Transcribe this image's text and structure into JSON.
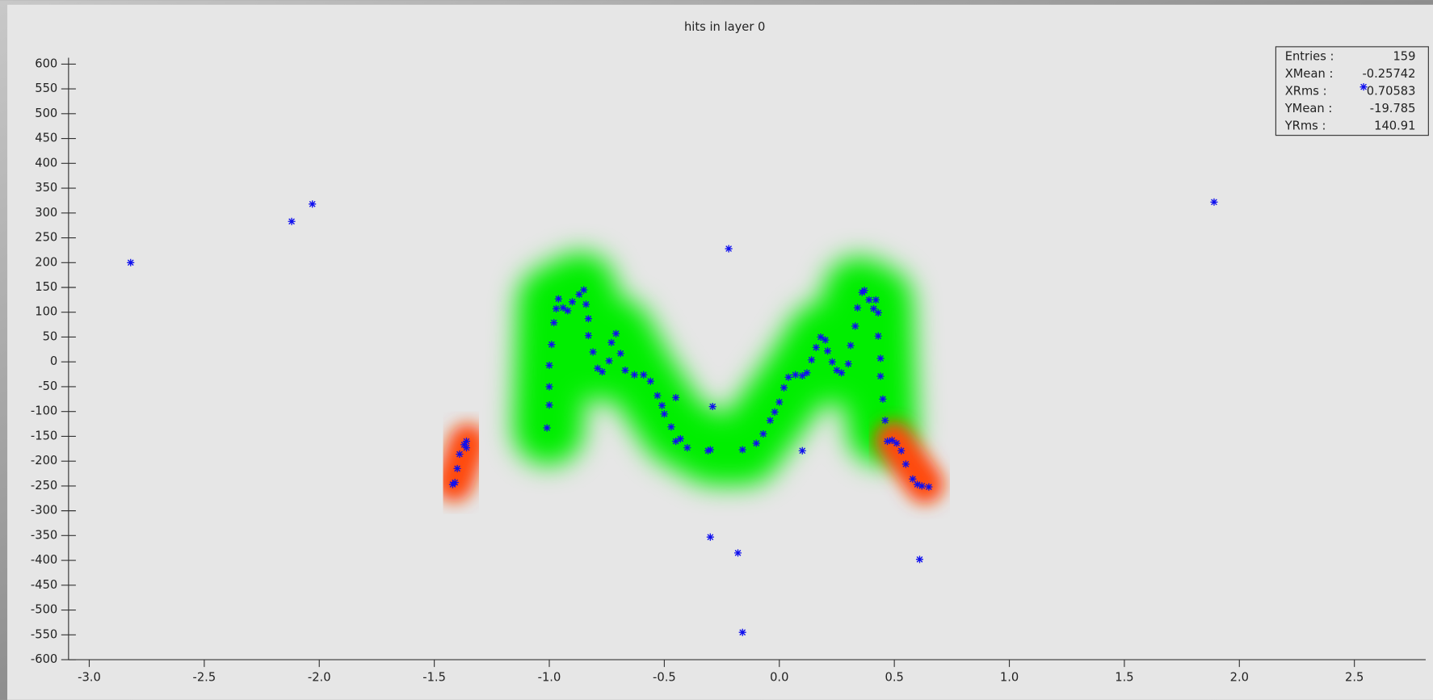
{
  "chart_data": {
    "type": "scatter",
    "title": "hits in layer 0",
    "color": "#1010ee",
    "xlim": [
      -3.09,
      2.81
    ],
    "ylim": [
      -600,
      600
    ],
    "xticks": [
      {
        "value": -3,
        "label": "-3.0"
      },
      -2.5,
      {
        "value": -2,
        "label": "-2.0"
      },
      -1.5,
      {
        "value": -1,
        "label": "-1.0"
      },
      -0.5,
      {
        "value": 0,
        "label": "0.0"
      },
      0.5,
      {
        "value": 1,
        "label": "1.0"
      },
      1.5,
      {
        "value": 2,
        "label": "2.0"
      },
      2.5
    ],
    "yticks": [
      -600,
      -550,
      -500,
      -450,
      -400,
      -350,
      -300,
      -250,
      -200,
      -150,
      -100,
      -50,
      0,
      50,
      100,
      150,
      200,
      250,
      300,
      350,
      400,
      450,
      500,
      550,
      600
    ],
    "stats": [
      {
        "label": "Entries :",
        "value": 159
      },
      {
        "label": "XMean :",
        "value": -0.25742
      },
      {
        "label": "XRms :",
        "value": 0.70583
      },
      {
        "label": "YMean :",
        "value": -19.785
      },
      {
        "label": "YRms :",
        "value": 140.91
      }
    ],
    "x": [
      -2.82,
      -2.12,
      -2.03,
      -0.22,
      1.89,
      2.54,
      -0.3,
      -0.18,
      -0.16,
      0.61,
      0.1,
      -0.29,
      -0.45,
      -1.41,
      -1.4,
      -1.39,
      -1.37,
      -1.36,
      -1.36,
      -1.42,
      -1.01,
      -1.0,
      -1.0,
      -1.0,
      -0.99,
      -0.98,
      -0.97,
      -0.96,
      -0.94,
      -0.92,
      -0.9,
      -0.87,
      -0.85,
      -0.84,
      -0.83,
      -0.83,
      -0.81,
      -0.79,
      -0.77,
      -0.74,
      -0.73,
      -0.71,
      -0.69,
      -0.67,
      -0.63,
      -0.59,
      -0.56,
      -0.53,
      -0.51,
      -0.5,
      -0.47,
      -0.45,
      -0.43,
      -0.4,
      -0.31,
      -0.3,
      -0.16,
      -0.1,
      -0.07,
      -0.04,
      -0.02,
      0.0,
      0.02,
      0.04,
      0.07,
      0.1,
      0.12,
      0.14,
      0.16,
      0.18,
      0.2,
      0.21,
      0.23,
      0.25,
      0.27,
      0.3,
      0.31,
      0.33,
      0.34,
      0.36,
      0.37,
      0.39,
      0.41,
      0.42,
      0.43,
      0.43,
      0.44,
      0.44,
      0.45,
      0.46,
      0.47,
      0.49,
      0.51,
      0.53,
      0.55,
      0.58,
      0.6,
      0.62,
      0.65
    ],
    "values": [
      200,
      283,
      318,
      228,
      322,
      554,
      -353,
      -385,
      -545,
      -398,
      -179,
      -90,
      -72,
      -243,
      -215,
      -186,
      -167,
      -160,
      -173,
      -247,
      -133,
      -87,
      -50,
      -7,
      35,
      79,
      107,
      127,
      109,
      103,
      121,
      136,
      145,
      116,
      87,
      53,
      20,
      -13,
      -20,
      2,
      39,
      57,
      17,
      -17,
      -26,
      -26,
      -39,
      -68,
      -88,
      -105,
      -131,
      -160,
      -155,
      -173,
      -179,
      -177,
      -177,
      -164,
      -145,
      -118,
      -101,
      -81,
      -52,
      -31,
      -26,
      -28,
      -22,
      4,
      29,
      50,
      44,
      22,
      0,
      -17,
      -22,
      -4,
      33,
      72,
      109,
      140,
      144,
      125,
      107,
      125,
      99,
      52,
      7,
      -29,
      -75,
      -118,
      -160,
      -158,
      -164,
      -179,
      -206,
      -236,
      -247,
      -250,
      -252
    ]
  }
}
